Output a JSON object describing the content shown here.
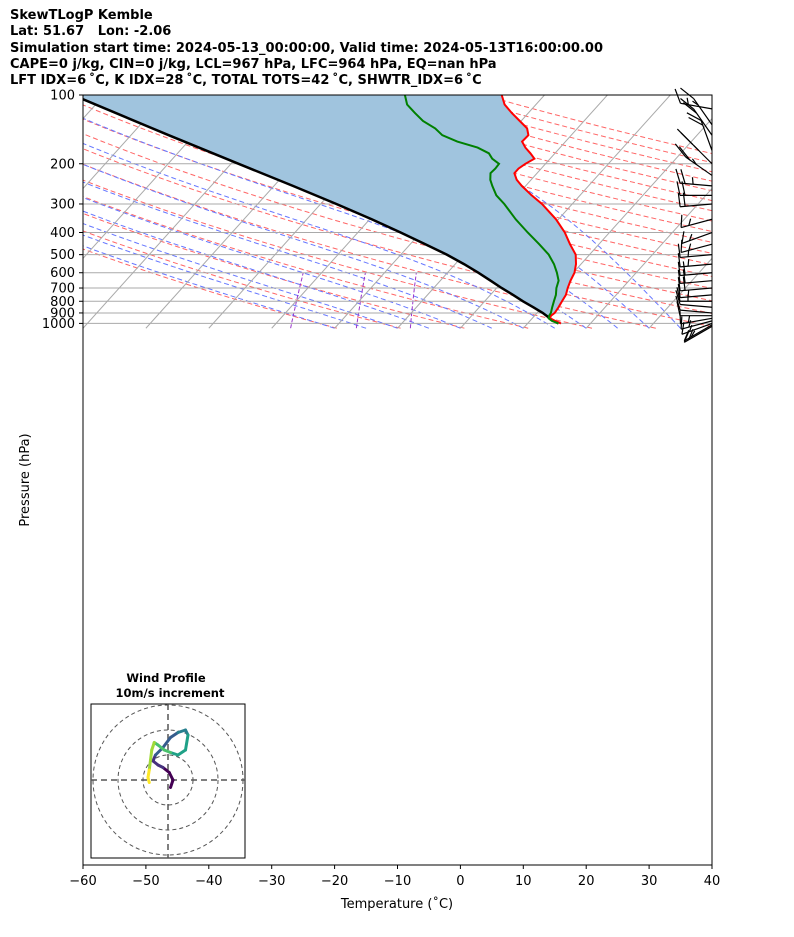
{
  "header": {
    "title": "SkewTLogP Kemble",
    "location": "Lat: 51.67   Lon: -2.06",
    "times": "Simulation start time: 2024-05-13_00:00:00, Valid time: 2024-05-13T16:00:00.00",
    "indices1": "CAPE=0 j/kg, CIN=0 j/kg, LCL=967 hPa, LFC=964 hPa, EQ=nan hPa",
    "indices2": "LFT IDX=6 ˚C, K IDX=28 ˚C, TOTAL TOTS=42 ˚C, SHWTR_IDX=6 ˚C"
  },
  "colors": {
    "temperature": "#ff0000",
    "dewpoint": "#008000",
    "parcel": "#000000",
    "shading": "#a0c4de",
    "isotherms": "#aaaaaa",
    "dry_adiabats": "#ff6666",
    "moist_adiabats": "#6677ff",
    "mixing_ratio": "#9933cc"
  },
  "chart_data": [
    {
      "type": "line",
      "chart_kind": "skew-T log-P",
      "xlabel": "Temperature (˚C)",
      "ylabel": "Pressure (hPa)",
      "xlim": [
        -60,
        40
      ],
      "ylim": [
        1050,
        100
      ],
      "y_scale": "log",
      "x_ticks": [
        -60,
        -50,
        -40,
        -30,
        -20,
        -10,
        0,
        10,
        20,
        30,
        40
      ],
      "y_ticks": [
        1000,
        900,
        800,
        700,
        600,
        500,
        400,
        300,
        200,
        100
      ],
      "grid": true,
      "series": [
        {
          "role": "temperature",
          "points": [
            [
              1000,
              15.3
            ],
            [
              975,
              14.0
            ],
            [
              950,
              12.8
            ],
            [
              925,
              12.6
            ],
            [
              900,
              12.8
            ],
            [
              850,
              12.6
            ],
            [
              800,
              12.3
            ],
            [
              750,
              12.0
            ],
            [
              700,
              11.3
            ],
            [
              650,
              10.7
            ],
            [
              600,
              10.2
            ],
            [
              550,
              9.2
            ],
            [
              500,
              7.8
            ],
            [
              450,
              5.4
            ],
            [
              400,
              2.9
            ],
            [
              350,
              -0.4
            ],
            [
              300,
              -4.8
            ],
            [
              275,
              -7.7
            ],
            [
              250,
              -10.6
            ],
            [
              235,
              -12.3
            ],
            [
              220,
              -13.6
            ],
            [
              210,
              -13.6
            ],
            [
              200,
              -13.2
            ],
            [
              190,
              -12.5
            ],
            [
              180,
              -13.9
            ],
            [
              170,
              -15.5
            ],
            [
              160,
              -16.9
            ],
            [
              150,
              -16.8
            ],
            [
              140,
              -18.0
            ],
            [
              130,
              -20.2
            ],
            [
              120,
              -22.6
            ],
            [
              110,
              -25.0
            ],
            [
              100,
              -26.8
            ]
          ]
        },
        {
          "role": "dewpoint",
          "points": [
            [
              1000,
              14.9
            ],
            [
              975,
              13.5
            ],
            [
              950,
              12.6
            ],
            [
              925,
              12.3
            ],
            [
              900,
              12.2
            ],
            [
              850,
              11.6
            ],
            [
              800,
              11.0
            ],
            [
              750,
              10.4
            ],
            [
              700,
              9.5
            ],
            [
              650,
              8.8
            ],
            [
              600,
              7.4
            ],
            [
              550,
              5.7
            ],
            [
              500,
              3.5
            ],
            [
              450,
              0.5
            ],
            [
              400,
              -3.0
            ],
            [
              350,
              -6.8
            ],
            [
              300,
              -10.8
            ],
            [
              275,
              -13.3
            ],
            [
              250,
              -15.3
            ],
            [
              235,
              -16.5
            ],
            [
              220,
              -17.4
            ],
            [
              210,
              -17.3
            ],
            [
              200,
              -17.4
            ],
            [
              190,
              -19.2
            ],
            [
              180,
              -20.5
            ],
            [
              170,
              -23.1
            ],
            [
              160,
              -27.2
            ],
            [
              150,
              -30.5
            ],
            [
              140,
              -32.6
            ],
            [
              130,
              -35.6
            ],
            [
              120,
              -38.0
            ],
            [
              110,
              -40.5
            ],
            [
              100,
              -42.2
            ]
          ]
        },
        {
          "role": "parcel",
          "points": [
            [
              1000,
              14.9
            ],
            [
              960,
              13.2
            ],
            [
              900,
              10.9
            ],
            [
              850,
              8.6
            ],
            [
              800,
              6.1
            ],
            [
              750,
              3.6
            ],
            [
              700,
              0.8
            ],
            [
              650,
              -2.0
            ],
            [
              600,
              -5.1
            ],
            [
              550,
              -8.6
            ],
            [
              500,
              -12.7
            ],
            [
              450,
              -17.6
            ],
            [
              400,
              -23.2
            ],
            [
              350,
              -29.7
            ],
            [
              300,
              -37.5
            ],
            [
              250,
              -47.0
            ],
            [
              200,
              -58.8
            ],
            [
              150,
              -74.0
            ],
            [
              100,
              -95.0
            ]
          ]
        }
      ],
      "wind_barbs": [
        {
          "p": 1030,
          "speed_kt": 20,
          "dir": 300
        },
        {
          "p": 1015,
          "speed_kt": 15,
          "dir": 300
        },
        {
          "p": 1000,
          "speed_kt": 15,
          "dir": 290
        },
        {
          "p": 975,
          "speed_kt": 15,
          "dir": 285
        },
        {
          "p": 950,
          "speed_kt": 15,
          "dir": 280
        },
        {
          "p": 925,
          "speed_kt": 10,
          "dir": 270
        },
        {
          "p": 900,
          "speed_kt": 10,
          "dir": 265
        },
        {
          "p": 850,
          "speed_kt": 10,
          "dir": 265
        },
        {
          "p": 800,
          "speed_kt": 15,
          "dir": 270
        },
        {
          "p": 750,
          "speed_kt": 15,
          "dir": 275
        },
        {
          "p": 700,
          "speed_kt": 20,
          "dir": 275
        },
        {
          "p": 650,
          "speed_kt": 20,
          "dir": 275
        },
        {
          "p": 600,
          "speed_kt": 20,
          "dir": 275
        },
        {
          "p": 550,
          "speed_kt": 15,
          "dir": 275
        },
        {
          "p": 500,
          "speed_kt": 15,
          "dir": 275
        },
        {
          "p": 450,
          "speed_kt": 15,
          "dir": 285
        },
        {
          "p": 400,
          "speed_kt": 15,
          "dir": 290
        },
        {
          "p": 350,
          "speed_kt": 15,
          "dir": 285
        },
        {
          "p": 300,
          "speed_kt": 20,
          "dir": 275
        },
        {
          "p": 275,
          "speed_kt": 20,
          "dir": 270
        },
        {
          "p": 250,
          "speed_kt": 25,
          "dir": 265
        },
        {
          "p": 225,
          "speed_kt": 25,
          "dir": 235
        },
        {
          "p": 200,
          "speed_kt": 25,
          "dir": 225
        },
        {
          "p": 175,
          "speed_kt": 20,
          "dir": 200
        },
        {
          "p": 150,
          "speed_kt": 20,
          "dir": 215
        },
        {
          "p": 135,
          "speed_kt": 15,
          "dir": 215
        },
        {
          "p": 115,
          "speed_kt": 15,
          "dir": 260
        }
      ]
    },
    {
      "type": "line",
      "chart_kind": "hodograph",
      "title": "Wind Profile",
      "subtitle": "10m/s increment",
      "ring_increment_ms": 10,
      "rings": 3,
      "trace_colormap": "viridis",
      "trace": [
        [
          5.0,
          -1.5
        ],
        [
          6.0,
          0.0
        ],
        [
          4.5,
          1.5
        ],
        [
          2.0,
          2.5
        ],
        [
          0.0,
          3.0
        ],
        [
          -2.0,
          3.8
        ],
        [
          -1.0,
          5.0
        ],
        [
          2.0,
          6.5
        ],
        [
          5.0,
          8.5
        ],
        [
          8.0,
          9.5
        ],
        [
          11.0,
          10.0
        ],
        [
          12.0,
          9.0
        ],
        [
          11.0,
          6.0
        ],
        [
          8.0,
          5.0
        ],
        [
          5.0,
          5.5
        ],
        [
          2.5,
          6.0
        ],
        [
          0.0,
          7.0
        ],
        [
          -1.5,
          7.5
        ],
        [
          -2.5,
          6.0
        ],
        [
          -3.0,
          4.0
        ],
        [
          -3.5,
          2.0
        ],
        [
          -4.0,
          0.5
        ],
        [
          -3.5,
          -0.5
        ]
      ]
    }
  ]
}
